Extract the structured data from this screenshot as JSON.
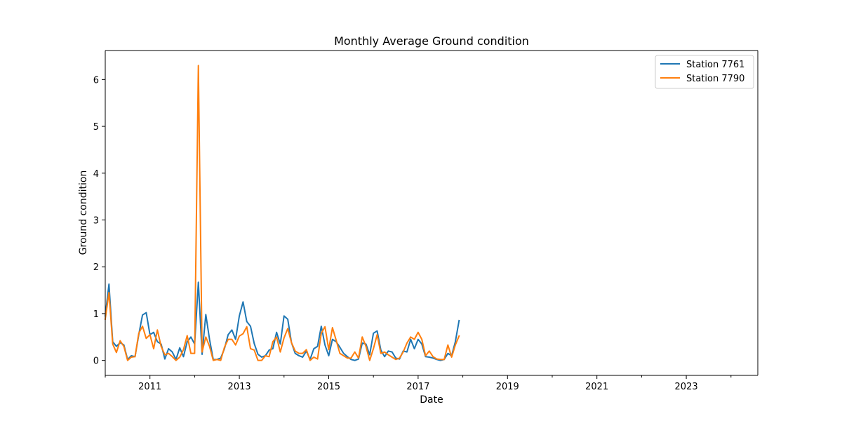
{
  "chart_data": {
    "type": "line",
    "title": "Monthly Average Ground condition",
    "xlabel": "Date",
    "ylabel": "Ground condition",
    "xlim": [
      2010.0,
      2024.6
    ],
    "ylim": [
      -0.32,
      6.62
    ],
    "x_major_ticks": [
      2011,
      2013,
      2015,
      2017,
      2019,
      2021,
      2023
    ],
    "x_minor_ticks": [
      2010,
      2012,
      2014,
      2016,
      2018,
      2020,
      2022,
      2024
    ],
    "x_tick_labels": [
      "2011",
      "2013",
      "2015",
      "2017",
      "2019",
      "2021",
      "2023"
    ],
    "y_ticks": [
      0,
      1,
      2,
      3,
      4,
      5,
      6
    ],
    "y_tick_labels": [
      "0",
      "1",
      "2",
      "3",
      "4",
      "5",
      "6"
    ],
    "legend_position": "top-right",
    "x_start": 2010.0,
    "x_step": 0.08333,
    "series": [
      {
        "name": "Station 7761",
        "label": "Station 7761",
        "color": "#1f77b4",
        "values": [
          0.95,
          1.63,
          0.4,
          0.3,
          0.38,
          0.33,
          0.02,
          0.1,
          0.08,
          0.55,
          0.97,
          1.02,
          0.55,
          0.6,
          0.4,
          0.35,
          0.03,
          0.25,
          0.18,
          0.02,
          0.27,
          0.08,
          0.4,
          0.5,
          0.35,
          1.67,
          0.13,
          0.98,
          0.45,
          0.02,
          0.02,
          0.05,
          0.25,
          0.55,
          0.65,
          0.45,
          0.95,
          1.25,
          0.83,
          0.73,
          0.36,
          0.13,
          0.07,
          0.1,
          0.22,
          0.25,
          0.6,
          0.35,
          0.95,
          0.88,
          0.38,
          0.15,
          0.1,
          0.07,
          0.2,
          0.02,
          0.25,
          0.3,
          0.73,
          0.33,
          0.1,
          0.45,
          0.4,
          0.28,
          0.15,
          0.08,
          0.02,
          0.0,
          0.03,
          0.37,
          0.35,
          0.12,
          0.58,
          0.63,
          0.22,
          0.08,
          0.2,
          0.18,
          0.05,
          0.03,
          0.2,
          0.18,
          0.45,
          0.25,
          0.45,
          0.35,
          0.08,
          0.07,
          0.05,
          0.02,
          0.0,
          0.02,
          0.15,
          0.1,
          0.4,
          0.85
        ]
      },
      {
        "name": "Station 7790",
        "label": "Station 7790",
        "color": "#ff7f0e",
        "values": [
          0.88,
          1.45,
          0.35,
          0.17,
          0.42,
          0.3,
          0.0,
          0.07,
          0.08,
          0.58,
          0.73,
          0.47,
          0.55,
          0.25,
          0.65,
          0.3,
          0.12,
          0.15,
          0.08,
          0.0,
          0.07,
          0.23,
          0.53,
          0.15,
          0.15,
          6.3,
          0.18,
          0.5,
          0.3,
          0.0,
          0.02,
          0.0,
          0.28,
          0.45,
          0.45,
          0.33,
          0.52,
          0.57,
          0.72,
          0.25,
          0.22,
          0.0,
          0.0,
          0.1,
          0.08,
          0.4,
          0.5,
          0.18,
          0.48,
          0.68,
          0.38,
          0.2,
          0.15,
          0.15,
          0.23,
          0.0,
          0.07,
          0.03,
          0.58,
          0.72,
          0.23,
          0.7,
          0.43,
          0.15,
          0.1,
          0.05,
          0.05,
          0.18,
          0.05,
          0.5,
          0.3,
          0.0,
          0.25,
          0.55,
          0.15,
          0.18,
          0.12,
          0.07,
          0.02,
          0.05,
          0.18,
          0.37,
          0.5,
          0.45,
          0.6,
          0.45,
          0.1,
          0.2,
          0.08,
          0.03,
          0.02,
          0.02,
          0.33,
          0.07,
          0.33,
          0.52
        ]
      }
    ]
  }
}
